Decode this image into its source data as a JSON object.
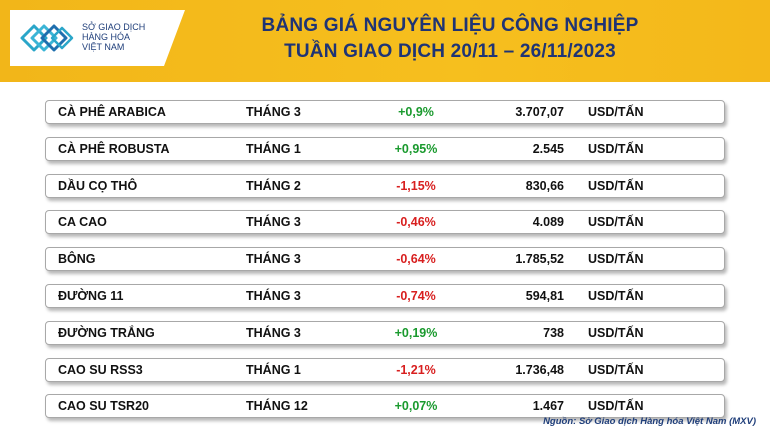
{
  "header": {
    "logo_lines": [
      "SỞ GIAO DỊCH",
      "HÀNG HÓA",
      "VIỆT NAM"
    ],
    "title_line1": "BẢNG GIÁ NGUYÊN LIỆU CÔNG NGHIỆP",
    "title_line2": "TUẦN GIAO DỊCH 20/11 – 26/11/2023",
    "colors": {
      "banner": "#f4b81a",
      "title": "#1f3475",
      "up": "#1a9a2e",
      "down": "#d81f1f"
    }
  },
  "rows": [
    {
      "name": "CÀ PHÊ ARABICA",
      "month": "THÁNG 3",
      "change": "+0,9%",
      "direction": "up",
      "price": "3.707,07",
      "unit": "USD/TẤN"
    },
    {
      "name": "CÀ PHÊ ROBUSTA",
      "month": "THÁNG 1",
      "change": "+0,95%",
      "direction": "up",
      "price": "2.545",
      "unit": "USD/TẤN"
    },
    {
      "name": "DẦU CỌ THÔ",
      "month": "THÁNG 2",
      "change": "-1,15%",
      "direction": "down",
      "price": "830,66",
      "unit": "USD/TẤN"
    },
    {
      "name": "CA CAO",
      "month": "THÁNG 3",
      "change": "-0,46%",
      "direction": "down",
      "price": "4.089",
      "unit": "USD/TẤN"
    },
    {
      "name": "BÔNG",
      "month": "THÁNG 3",
      "change": "-0,64%",
      "direction": "down",
      "price": "1.785,52",
      "unit": "USD/TẤN"
    },
    {
      "name": "ĐƯỜNG 11",
      "month": "THÁNG 3",
      "change": "-0,74%",
      "direction": "down",
      "price": "594,81",
      "unit": "USD/TẤN"
    },
    {
      "name": "ĐƯỜNG TRẮNG",
      "month": "THÁNG 3",
      "change": "+0,19%",
      "direction": "up",
      "price": "738",
      "unit": "USD/TẤN"
    },
    {
      "name": "CAO SU RSS3",
      "month": "THÁNG 1",
      "change": "-1,21%",
      "direction": "down",
      "price": "1.736,48",
      "unit": "USD/TẤN"
    },
    {
      "name": "CAO SU TSR20",
      "month": "THÁNG 12",
      "change": "+0,07%",
      "direction": "up",
      "price": "1.467",
      "unit": "USD/TẤN"
    }
  ],
  "source": "Nguồn: Sở Giao dịch Hàng hóa Việt Nam (MXV)"
}
